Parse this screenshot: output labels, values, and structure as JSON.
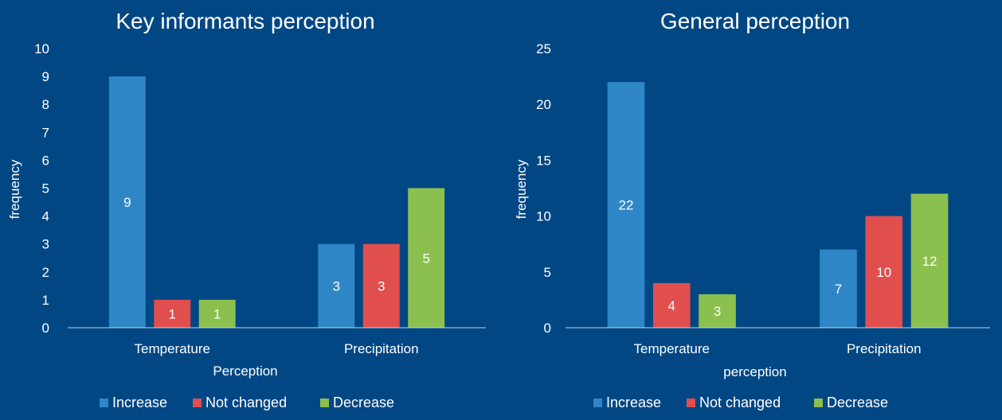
{
  "chart_data": [
    {
      "type": "bar",
      "title": "Key informants perception",
      "xlabel": "Perception",
      "ylabel": "frequency",
      "categories": [
        "Temperature",
        "Precipitation"
      ],
      "series": [
        {
          "name": "Increase",
          "values": [
            9,
            3
          ]
        },
        {
          "name": "Not changed",
          "values": [
            1,
            3
          ]
        },
        {
          "name": "Decrease",
          "values": [
            1,
            5
          ]
        }
      ],
      "ylim": [
        0,
        10
      ],
      "yticks": [
        "0",
        "1",
        "2",
        "3",
        "4",
        "5",
        "6",
        "7",
        "8",
        "9",
        "10"
      ],
      "grid": false,
      "legend_position": "bottom",
      "colors": [
        "#2e86c7",
        "#e04e4e",
        "#8cc04e"
      ]
    },
    {
      "type": "bar",
      "title": "General perception",
      "xlabel": "perception",
      "ylabel": "frequency",
      "categories": [
        "Temperature",
        "Precipitation"
      ],
      "series": [
        {
          "name": "Increase",
          "values": [
            22,
            7
          ]
        },
        {
          "name": "Not changed",
          "values": [
            4,
            10
          ]
        },
        {
          "name": "Decrease",
          "values": [
            3,
            12
          ]
        }
      ],
      "ylim": [
        0,
        25
      ],
      "yticks": [
        "0",
        "5",
        "10",
        "15",
        "20",
        "25"
      ],
      "grid": false,
      "legend_position": "bottom",
      "colors": [
        "#2e86c7",
        "#e04e4e",
        "#8cc04e"
      ]
    }
  ]
}
